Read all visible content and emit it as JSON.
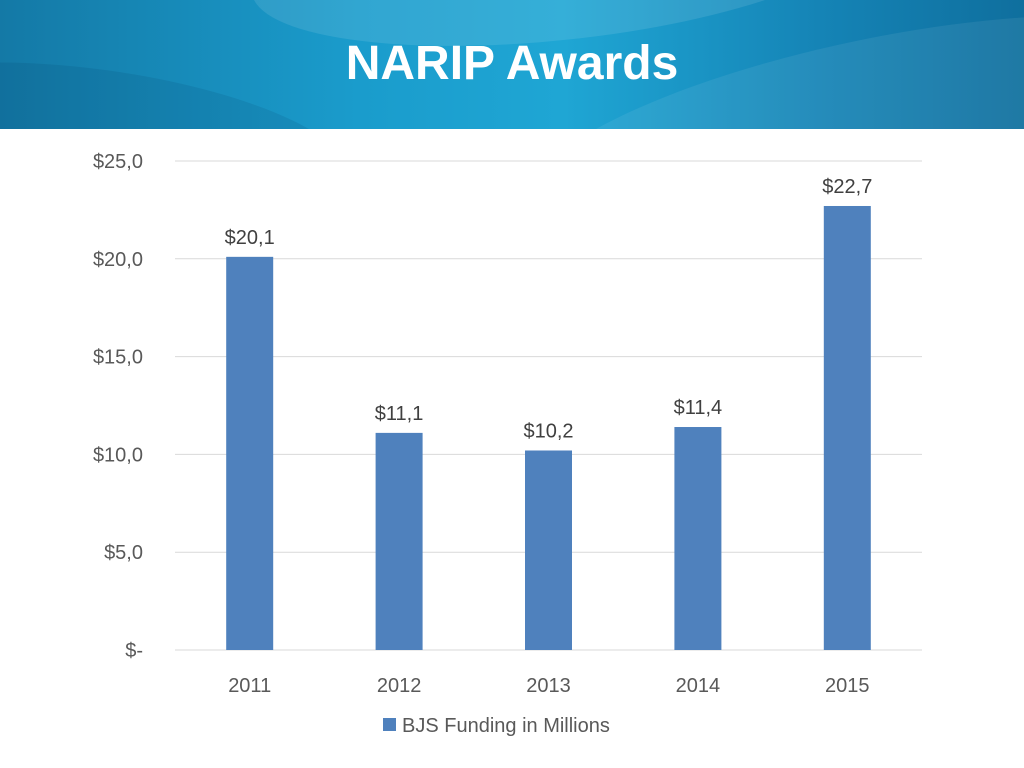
{
  "title": "NARIP Awards",
  "chart_data": {
    "type": "bar",
    "title": "",
    "xlabel": "",
    "ylabel": "",
    "categories": [
      "2011",
      "2012",
      "2013",
      "2014",
      "2015"
    ],
    "series": [
      {
        "name": "BJS Funding in Millions",
        "values": [
          20.1,
          11.1,
          10.2,
          11.4,
          22.7
        ],
        "data_labels": [
          "$20,1",
          "$11,1",
          "$10,2",
          "$11,4",
          "$22,7"
        ],
        "color": "#4f81bd"
      }
    ],
    "ylim": [
      0,
      25
    ],
    "yticks": [
      0,
      5,
      10,
      15,
      20,
      25
    ],
    "ytick_labels": [
      "$-",
      "$5,0",
      "$10,0",
      "$15,0",
      "$20,0",
      "$25,0"
    ],
    "grid": true,
    "legend": "bottom"
  },
  "colors": {
    "bar": "#4f81bd",
    "grid": "#d9d9d9",
    "header": "#1a9ccc"
  }
}
